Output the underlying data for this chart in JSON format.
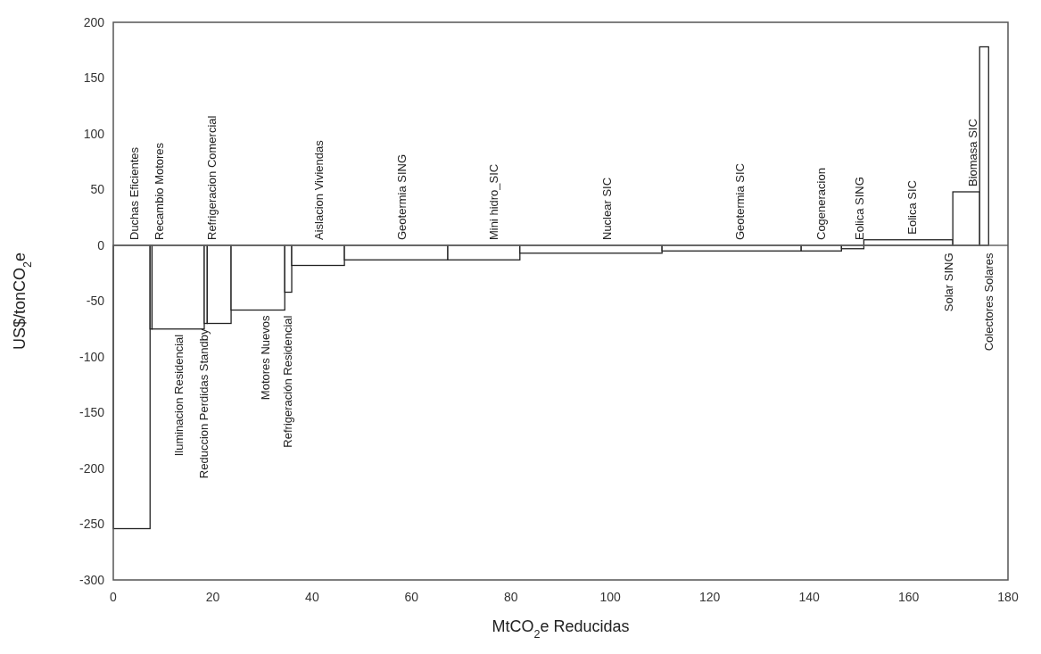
{
  "chart_data": {
    "type": "histogram",
    "xlabel": "MtCO$_{2}$e Reducidas",
    "ylabel": "US$/tonCO$_{2}$e",
    "bins": [
      0,
      7.4,
      7.8,
      18.3,
      18.9,
      23.7,
      34.5,
      35.9,
      46.5,
      67.3,
      81.8,
      110.4,
      138.4,
      146.5,
      151.0,
      168.9,
      174.3,
      176.1
    ],
    "values": [
      -254,
      -75,
      -75,
      -70,
      -70,
      -58,
      -42,
      -18,
      -13,
      -13,
      -7,
      -5,
      -5,
      -3,
      5,
      48,
      178
    ],
    "color": "#ffffff",
    "xlim": [
      0,
      180
    ],
    "xticks": [
      0,
      20,
      40,
      60,
      80,
      100,
      120,
      140,
      160,
      180
    ],
    "ylim": [
      -300,
      200
    ],
    "yticks": [
      -300,
      -250,
      -200,
      -150,
      -100,
      -50,
      0,
      50,
      100,
      150,
      200
    ],
    "grid": false,
    "ref_lines": [
      {
        "axis": "y",
        "value": 0
      }
    ],
    "annotations": [
      {
        "text": "Duchas Eficientes",
        "x": 4.1,
        "y": 0
      },
      {
        "text": "Recambio  Motores",
        "x": 9.2,
        "y": 0
      },
      {
        "text": "Iluminacion  Residencial",
        "x": 13.1,
        "y": -75
      },
      {
        "text": "Refrigeracion Comercial",
        "x": 19.7,
        "y": 0
      },
      {
        "text": "Reduccion Perdidas Standby",
        "x": 18.1,
        "y": -70
      },
      {
        "text": "Motores Nuevos",
        "x": 30.5,
        "y": -58
      },
      {
        "text": "Refrigeración Residencial",
        "x": 35,
        "y": -58
      },
      {
        "text": "Aislacion Viviendas",
        "x": 41.3,
        "y": 0
      },
      {
        "text": "Geotermia SING",
        "x": 58,
        "y": 0
      },
      {
        "text": "Mini hidro_SIC",
        "x": 76.5,
        "y": 0
      },
      {
        "text": "Nuclear SIC",
        "x": 99.3,
        "y": 0
      },
      {
        "text": "Geotermia SIC",
        "x": 126,
        "y": 0
      },
      {
        "text": "Cogeneracion",
        "x": 142.4,
        "y": 0
      },
      {
        "text": "Eolica SING",
        "x": 150,
        "y": 0
      },
      {
        "text": "Eolica SIC",
        "x": 160.7,
        "y": 5
      },
      {
        "text": "Solar SING",
        "x": 168,
        "y": -2
      },
      {
        "text": "Biomasa SIC",
        "x": 172.9,
        "y": 48
      },
      {
        "text": "Colectores Solares",
        "x": 176.1,
        "y": -2
      }
    ]
  }
}
